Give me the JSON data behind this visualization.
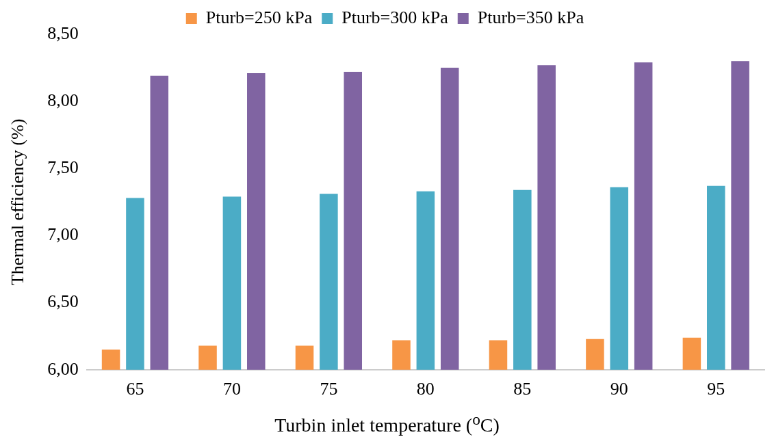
{
  "chart_data": {
    "type": "bar",
    "xlabel": "Turbin inlet temperature ($^{o}$C)",
    "ylabel": "Thermal efficiency (%)",
    "categories": [
      "65",
      "70",
      "75",
      "80",
      "85",
      "90",
      "95"
    ],
    "series": [
      {
        "name": "Pturb=250 kPa",
        "color": "#f79646",
        "values": [
          6.15,
          6.18,
          6.18,
          6.22,
          6.22,
          6.23,
          6.24
        ]
      },
      {
        "name": "Pturb=300 kPa",
        "color": "#4bacc6",
        "values": [
          7.28,
          7.29,
          7.31,
          7.33,
          7.34,
          7.36,
          7.37
        ]
      },
      {
        "name": "Pturb=350 kPa",
        "color": "#8064a2",
        "values": [
          8.19,
          8.21,
          8.22,
          8.25,
          8.27,
          8.29,
          8.3
        ]
      }
    ],
    "ylim": [
      6,
      8.5
    ],
    "yticks": [
      {
        "value": 6,
        "label": "6,00"
      },
      {
        "value": 6.5,
        "label": "6,50"
      },
      {
        "value": 7,
        "label": "7,00"
      },
      {
        "value": 7.5,
        "label": "7,50"
      },
      {
        "value": 8,
        "label": "8,00"
      },
      {
        "value": 8.5,
        "label": "8,50"
      }
    ],
    "grid": false,
    "legend": "top"
  }
}
